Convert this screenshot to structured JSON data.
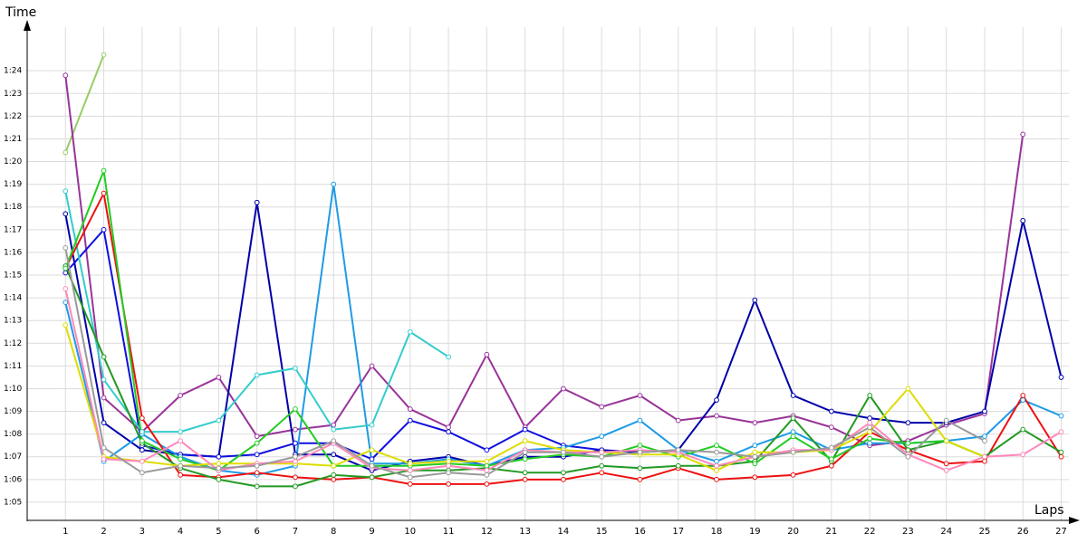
{
  "chart_data": {
    "type": "line",
    "y_label": "Time",
    "x_label": "Laps",
    "x": [
      1,
      2,
      3,
      4,
      5,
      6,
      7,
      8,
      9,
      10,
      11,
      12,
      13,
      14,
      15,
      16,
      17,
      18,
      19,
      20,
      21,
      22,
      23,
      24,
      25,
      26,
      27
    ],
    "xlim": [
      0,
      27.2
    ],
    "xticks": [
      1,
      2,
      3,
      4,
      5,
      6,
      7,
      8,
      9,
      10,
      11,
      12,
      13,
      14,
      15,
      16,
      17,
      18,
      19,
      20,
      21,
      22,
      23,
      24,
      25,
      26,
      27
    ],
    "ylim": [
      64.2,
      86
    ],
    "yticks": [
      {
        "value": 65,
        "label": "1:05"
      },
      {
        "value": 66,
        "label": "1:06"
      },
      {
        "value": 67,
        "label": "1:07"
      },
      {
        "value": 68,
        "label": "1:08"
      },
      {
        "value": 69,
        "label": "1:09"
      },
      {
        "value": 70,
        "label": "1:10"
      },
      {
        "value": 71,
        "label": "1:11"
      },
      {
        "value": 72,
        "label": "1:12"
      },
      {
        "value": 73,
        "label": "1:13"
      },
      {
        "value": 74,
        "label": "1:14"
      },
      {
        "value": 75,
        "label": "1:15"
      },
      {
        "value": 76,
        "label": "1:16"
      },
      {
        "value": 77,
        "label": "1:17"
      },
      {
        "value": 78,
        "label": "1:18"
      },
      {
        "value": 79,
        "label": "1:19"
      },
      {
        "value": 80,
        "label": "1:20"
      },
      {
        "value": 81,
        "label": "1:21"
      },
      {
        "value": 82,
        "label": "1:22"
      },
      {
        "value": 83,
        "label": "1:23"
      },
      {
        "value": 84,
        "label": "1:24"
      }
    ],
    "grid": true,
    "series": [
      {
        "color": "#99cc66",
        "values": [
          80.4,
          84.7,
          null,
          null,
          null,
          null,
          null,
          null,
          null,
          null,
          null,
          null,
          null,
          null,
          null,
          null,
          null,
          null,
          null,
          null,
          null,
          null,
          null,
          null,
          null,
          null,
          null
        ]
      },
      {
        "color": "#993399",
        "values": [
          83.8,
          69.6,
          68.1,
          69.7,
          70.5,
          67.9,
          68.2,
          68.4,
          71.0,
          69.1,
          68.3,
          71.5,
          68.3,
          70.0,
          69.2,
          69.7,
          68.6,
          68.8,
          68.5,
          68.8,
          68.3,
          67.5,
          67.7,
          68.4,
          68.9,
          81.2,
          null
        ]
      },
      {
        "color": "#0000aa",
        "values": [
          77.7,
          68.5,
          67.3,
          67.1,
          67.0,
          78.2,
          67.1,
          67.1,
          66.4,
          66.8,
          67.0,
          66.6,
          67.0,
          67.0,
          67.3,
          67.2,
          67.3,
          69.5,
          73.9,
          69.7,
          69.0,
          68.7,
          68.5,
          68.5,
          69.0,
          77.4,
          70.5
        ]
      },
      {
        "color": "#1010dd",
        "values": [
          75.1,
          77.0,
          67.5,
          67.1,
          67.0,
          67.1,
          67.6,
          67.6,
          66.9,
          68.6,
          68.1,
          67.3,
          68.2,
          67.5,
          67.3,
          null,
          null,
          null,
          null,
          null,
          null,
          null,
          null,
          null,
          null,
          null,
          null
        ]
      },
      {
        "color": "#1e9be6",
        "values": [
          73.8,
          66.8,
          68.0,
          67.0,
          66.4,
          66.2,
          66.6,
          79.0,
          66.7,
          66.7,
          66.9,
          66.6,
          67.3,
          67.4,
          67.9,
          68.6,
          67.3,
          66.8,
          67.5,
          68.1,
          67.3,
          67.6,
          67.6,
          67.7,
          67.9,
          69.5,
          68.8
        ]
      },
      {
        "color": "#33cccc",
        "values": [
          78.7,
          70.4,
          68.1,
          68.1,
          68.6,
          70.6,
          70.9,
          68.2,
          68.4,
          72.5,
          71.4,
          null,
          null,
          null,
          null,
          null,
          null,
          null,
          null,
          null,
          null,
          null,
          null,
          null,
          null,
          null,
          null
        ]
      },
      {
        "color": "#ee1111",
        "values": [
          75.3,
          78.6,
          68.7,
          66.2,
          66.1,
          66.3,
          66.1,
          66.0,
          66.1,
          65.8,
          65.8,
          65.8,
          66.0,
          66.0,
          66.3,
          66.0,
          66.5,
          66.0,
          66.1,
          66.2,
          66.6,
          68.1,
          67.3,
          66.7,
          66.8,
          69.7,
          67.0
        ]
      },
      {
        "color": "#229922",
        "values": [
          75.4,
          71.4,
          67.6,
          66.5,
          66.0,
          65.7,
          65.7,
          66.2,
          66.1,
          66.4,
          66.4,
          66.5,
          66.3,
          66.3,
          66.6,
          66.5,
          66.6,
          66.6,
          66.8,
          68.7,
          66.8,
          69.7,
          67.3,
          67.7,
          67.0,
          68.2,
          67.2
        ]
      },
      {
        "color": "#22cc22",
        "values": [
          75.3,
          79.6,
          67.7,
          66.9,
          66.4,
          67.6,
          69.1,
          66.6,
          66.6,
          66.6,
          66.7,
          66.6,
          66.9,
          67.1,
          67.0,
          67.5,
          67.0,
          67.5,
          66.7,
          67.9,
          66.9,
          67.8,
          67.6,
          67.7,
          67.0,
          null,
          null
        ]
      },
      {
        "color": "#dddd00",
        "values": [
          72.8,
          67.0,
          66.8,
          66.6,
          66.7,
          66.7,
          66.7,
          66.6,
          67.3,
          66.7,
          66.8,
          66.8,
          67.7,
          67.3,
          67.2,
          67.1,
          67.1,
          66.4,
          67.2,
          67.2,
          67.3,
          68.1,
          70.0,
          67.7,
          67.0,
          null,
          null
        ]
      },
      {
        "color": "#ff88bb",
        "values": [
          74.4,
          66.9,
          66.8,
          67.7,
          66.4,
          66.7,
          66.8,
          67.6,
          66.5,
          66.4,
          66.6,
          66.4,
          67.3,
          67.2,
          67.2,
          67.3,
          67.2,
          66.6,
          67.0,
          67.3,
          67.3,
          68.5,
          67.1,
          66.4,
          67.0,
          67.1,
          68.1
        ]
      },
      {
        "color": "#999999",
        "values": [
          76.2,
          67.4,
          66.3,
          66.6,
          66.5,
          66.6,
          67.0,
          67.7,
          66.6,
          66.1,
          66.3,
          66.2,
          67.2,
          67.2,
          67.0,
          67.2,
          67.3,
          67.2,
          67.0,
          67.2,
          67.4,
          68.3,
          67.0,
          68.6,
          67.7,
          null,
          null
        ]
      }
    ]
  }
}
